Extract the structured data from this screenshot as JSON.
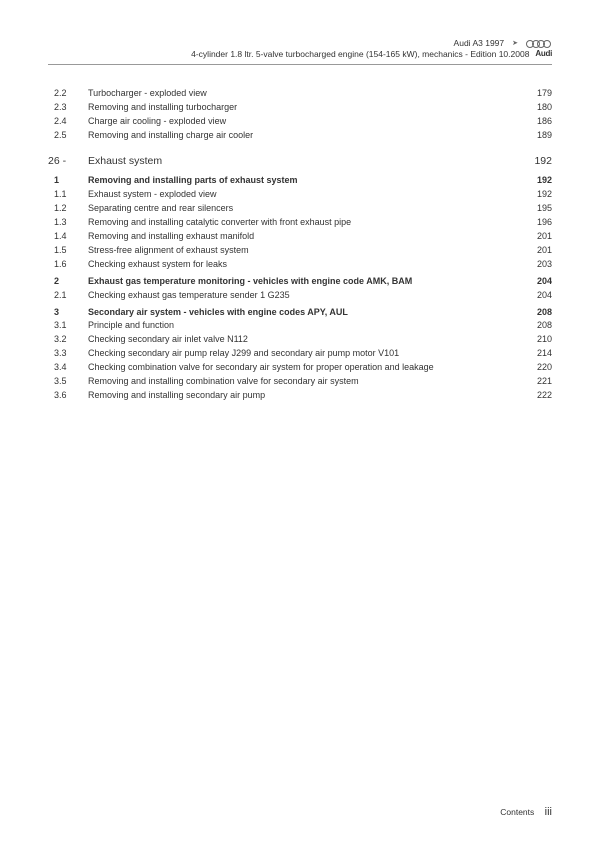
{
  "header": {
    "model": "Audi A3 1997",
    "subtitle": "4-cylinder 1.8 ltr. 5-valve turbocharged engine (154-165 kW), mechanics - Edition 10.2008",
    "brand": "Audi"
  },
  "toc": {
    "continued": [
      {
        "num": "2.2",
        "title": "Turbocharger - exploded view",
        "page": "179"
      },
      {
        "num": "2.3",
        "title": "Removing and installing turbocharger",
        "page": "180"
      },
      {
        "num": "2.4",
        "title": "Charge air cooling - exploded view",
        "page": "186"
      },
      {
        "num": "2.5",
        "title": "Removing and installing charge air cooler",
        "page": "189"
      }
    ],
    "chapter": {
      "num": "26 -",
      "title": "Exhaust system",
      "page": "192"
    },
    "sections": [
      {
        "num": "1",
        "title": "Removing and installing parts of exhaust system",
        "page": "192",
        "bold": true
      },
      {
        "num": "1.1",
        "title": "Exhaust system - exploded view",
        "page": "192"
      },
      {
        "num": "1.2",
        "title": "Separating centre and rear silencers",
        "page": "195"
      },
      {
        "num": "1.3",
        "title": "Removing and installing catalytic converter with front exhaust pipe",
        "page": "196"
      },
      {
        "num": "1.4",
        "title": "Removing and installing exhaust manifold",
        "page": "201"
      },
      {
        "num": "1.5",
        "title": "Stress-free alignment of exhaust system",
        "page": "201"
      },
      {
        "num": "1.6",
        "title": "Checking exhaust system for leaks",
        "page": "203"
      },
      {
        "num": "2",
        "title": "Exhaust gas temperature monitoring - vehicles with engine code AMK, BAM",
        "page": "204",
        "bold": true,
        "gap": true
      },
      {
        "num": "2.1",
        "title": "Checking exhaust gas temperature sender 1 G235",
        "page": "204"
      },
      {
        "num": "3",
        "title": "Secondary air system - vehicles with engine codes APY, AUL",
        "page": "208",
        "bold": true,
        "gap": true
      },
      {
        "num": "3.1",
        "title": "Principle and function",
        "page": "208"
      },
      {
        "num": "3.2",
        "title": "Checking secondary air inlet valve N112",
        "page": "210"
      },
      {
        "num": "3.3",
        "title": "Checking secondary air pump relay J299 and secondary air pump motor V101",
        "page": "214"
      },
      {
        "num": "3.4",
        "title": "Checking combination valve for secondary air system for proper operation and leakage",
        "page": "220"
      },
      {
        "num": "3.5",
        "title": "Removing and installing combination valve for secondary air system",
        "page": "221"
      },
      {
        "num": "3.6",
        "title": "Removing and installing secondary air pump",
        "page": "222"
      }
    ]
  },
  "footer": {
    "label": "Contents",
    "pagenum": "iii"
  }
}
